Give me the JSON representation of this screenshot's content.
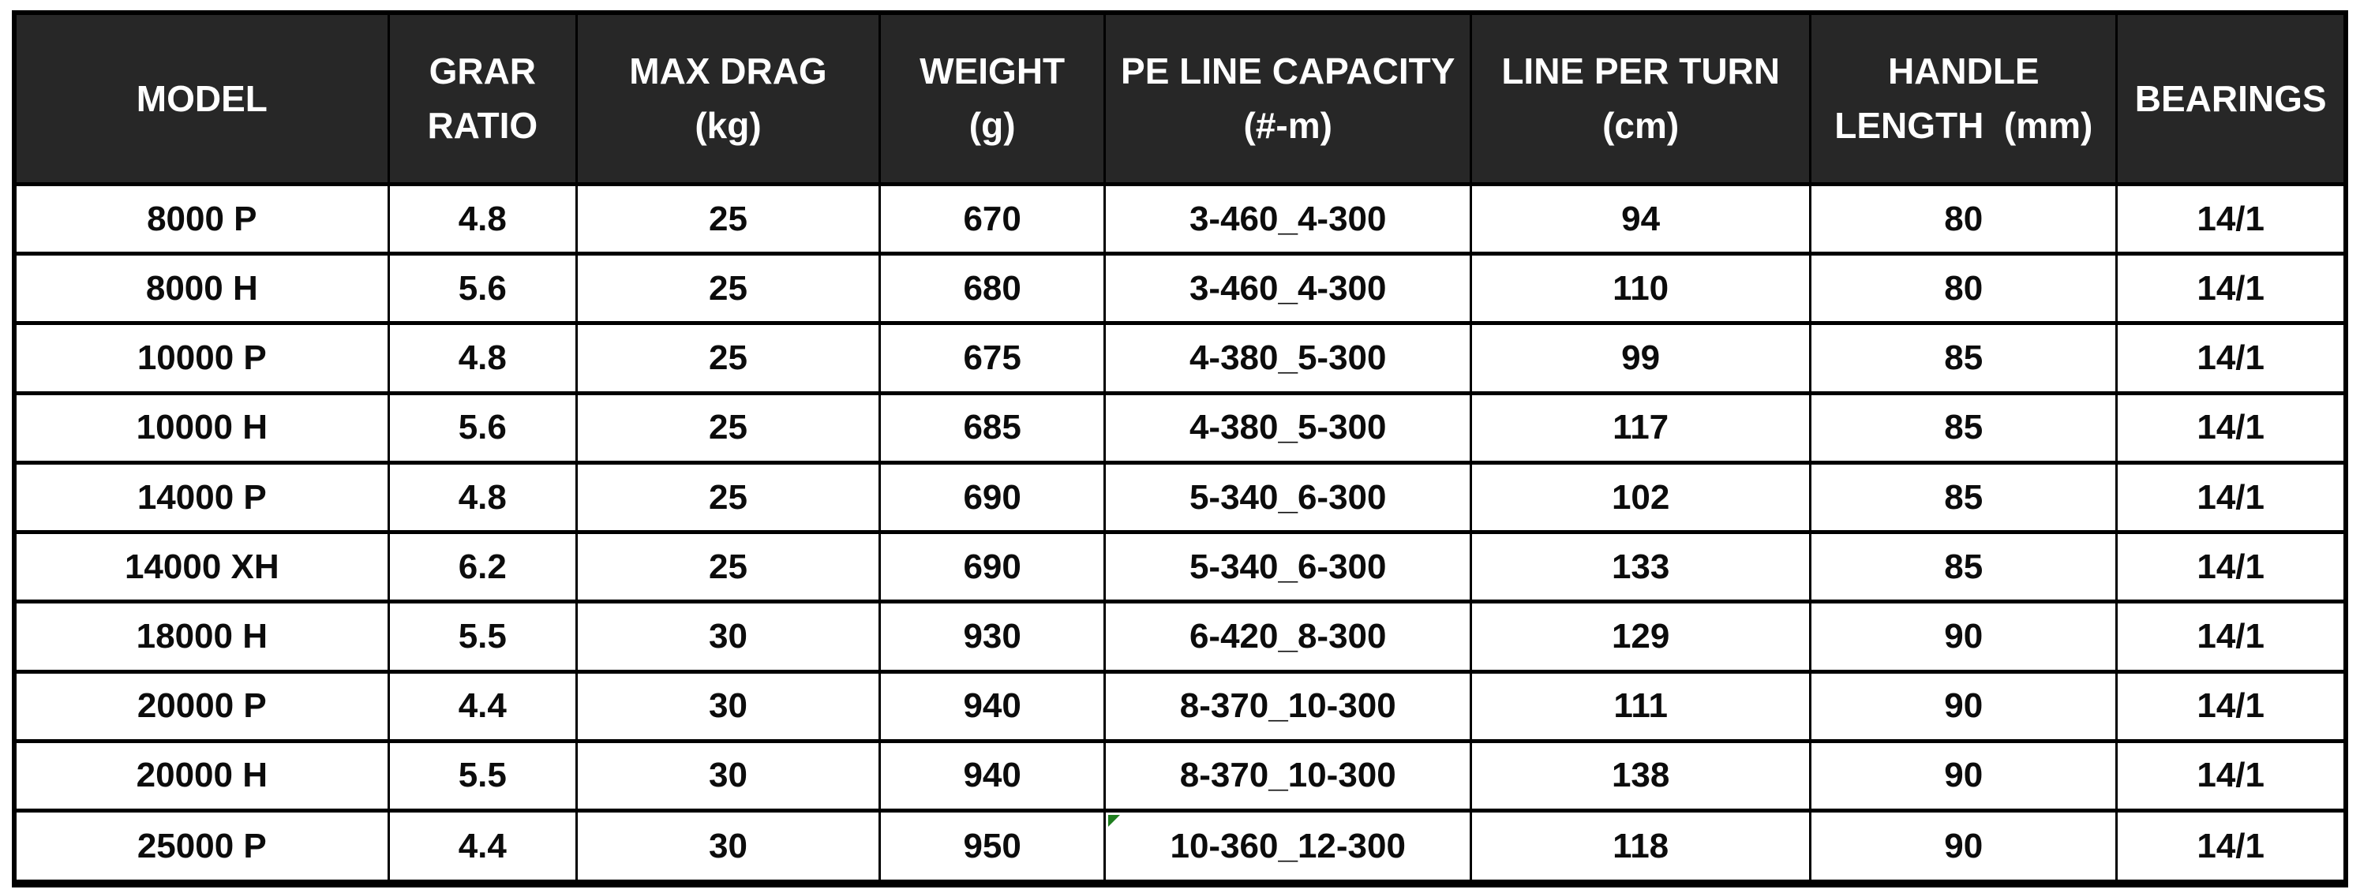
{
  "page": {
    "background": "#ffffff"
  },
  "colors": {
    "header_bg": "#272727",
    "header_text": "#ffffff",
    "body_text": "#0c0c0c",
    "border": "#000000",
    "corner_marker_green": "#1e7d1e"
  },
  "table": {
    "column_keys": [
      "model",
      "gear_ratio",
      "max_drag",
      "weight",
      "pe_line_capacity",
      "line_per_turn",
      "handle_length",
      "bearings"
    ],
    "columns": [
      {
        "key": "model",
        "label": "MODEL"
      },
      {
        "key": "gear_ratio",
        "label": "GRAR\nRATIO"
      },
      {
        "key": "max_drag",
        "label": "MAX DRAG\n(kg)"
      },
      {
        "key": "weight",
        "label": "WEIGHT\n(g)"
      },
      {
        "key": "pe_line_capacity",
        "label": "PE LINE CAPACITY\n(#-m)"
      },
      {
        "key": "line_per_turn",
        "label": "LINE PER TURN\n(cm)"
      },
      {
        "key": "handle_length",
        "label": "HANDLE\nLENGTH  (mm)"
      },
      {
        "key": "bearings",
        "label": "BEARINGS"
      }
    ],
    "rows": [
      {
        "model": "8000 P",
        "gear_ratio": "4.8",
        "max_drag": "25",
        "weight": "670",
        "pe_line_capacity": "3-460_4-300",
        "line_per_turn": "94",
        "handle_length": "80",
        "bearings": "14/1"
      },
      {
        "model": "8000 H",
        "gear_ratio": "5.6",
        "max_drag": "25",
        "weight": "680",
        "pe_line_capacity": "3-460_4-300",
        "line_per_turn": "110",
        "handle_length": "80",
        "bearings": "14/1"
      },
      {
        "model": "10000 P",
        "gear_ratio": "4.8",
        "max_drag": "25",
        "weight": "675",
        "pe_line_capacity": "4-380_5-300",
        "line_per_turn": "99",
        "handle_length": "85",
        "bearings": "14/1"
      },
      {
        "model": "10000 H",
        "gear_ratio": "5.6",
        "max_drag": "25",
        "weight": "685",
        "pe_line_capacity": "4-380_5-300",
        "line_per_turn": "117",
        "handle_length": "85",
        "bearings": "14/1"
      },
      {
        "model": "14000 P",
        "gear_ratio": "4.8",
        "max_drag": "25",
        "weight": "690",
        "pe_line_capacity": "5-340_6-300",
        "line_per_turn": "102",
        "handle_length": "85",
        "bearings": "14/1"
      },
      {
        "model": "14000 XH",
        "gear_ratio": "6.2",
        "max_drag": "25",
        "weight": "690",
        "pe_line_capacity": "5-340_6-300",
        "line_per_turn": "133",
        "handle_length": "85",
        "bearings": "14/1"
      },
      {
        "model": "18000 H",
        "gear_ratio": "5.5",
        "max_drag": "30",
        "weight": "930",
        "pe_line_capacity": "6-420_8-300",
        "line_per_turn": "129",
        "handle_length": "90",
        "bearings": "14/1"
      },
      {
        "model": "20000 P",
        "gear_ratio": "4.4",
        "max_drag": "30",
        "weight": "940",
        "pe_line_capacity": "8-370_10-300",
        "line_per_turn": "111",
        "handle_length": "90",
        "bearings": "14/1"
      },
      {
        "model": "20000 H",
        "gear_ratio": "5.5",
        "max_drag": "30",
        "weight": "940",
        "pe_line_capacity": "8-370_10-300",
        "line_per_turn": "138",
        "handle_length": "90",
        "bearings": "14/1"
      },
      {
        "model": "25000 P",
        "gear_ratio": "4.4",
        "max_drag": "30",
        "weight": "950",
        "pe_line_capacity": "10-360_12-300",
        "line_per_turn": "118",
        "handle_length": "90",
        "bearings": "14/1"
      }
    ],
    "corner_marker": {
      "row": 9,
      "col": 4
    }
  },
  "chart_data": {
    "type": "table",
    "title": "",
    "columns": [
      "MODEL",
      "GRAR RATIO",
      "MAX DRAG (kg)",
      "WEIGHT (g)",
      "PE LINE CAPACITY (#-m)",
      "LINE PER TURN (cm)",
      "HANDLE LENGTH (mm)",
      "BEARINGS"
    ],
    "rows": [
      [
        "8000 P",
        "4.8",
        "25",
        "670",
        "3-460_4-300",
        "94",
        "80",
        "14/1"
      ],
      [
        "8000 H",
        "5.6",
        "25",
        "680",
        "3-460_4-300",
        "110",
        "80",
        "14/1"
      ],
      [
        "10000 P",
        "4.8",
        "25",
        "675",
        "4-380_5-300",
        "99",
        "85",
        "14/1"
      ],
      [
        "10000 H",
        "5.6",
        "25",
        "685",
        "4-380_5-300",
        "117",
        "85",
        "14/1"
      ],
      [
        "14000 P",
        "4.8",
        "25",
        "690",
        "5-340_6-300",
        "102",
        "85",
        "14/1"
      ],
      [
        "14000 XH",
        "6.2",
        "25",
        "690",
        "5-340_6-300",
        "133",
        "85",
        "14/1"
      ],
      [
        "18000 H",
        "5.5",
        "30",
        "930",
        "6-420_8-300",
        "129",
        "90",
        "14/1"
      ],
      [
        "20000 P",
        "4.4",
        "30",
        "940",
        "8-370_10-300",
        "111",
        "90",
        "14/1"
      ],
      [
        "20000 H",
        "5.5",
        "30",
        "940",
        "8-370_10-300",
        "138",
        "90",
        "14/1"
      ],
      [
        "25000 P",
        "4.4",
        "30",
        "950",
        "10-360_12-300",
        "118",
        "90",
        "14/1"
      ]
    ]
  }
}
